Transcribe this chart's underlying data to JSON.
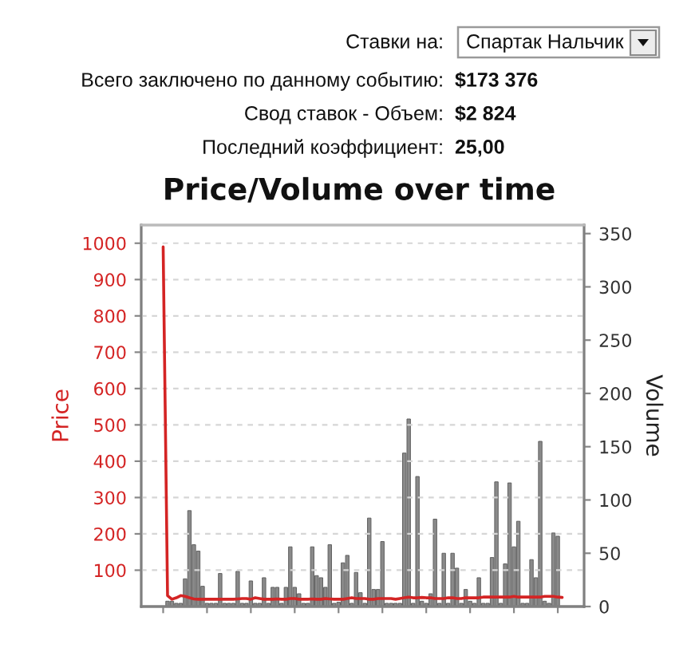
{
  "chart_data": {
    "type": "bar",
    "title": "Price/Volume over time",
    "ylabel": "Price",
    "y2label": "Volume",
    "annotations": [
      "Ставки на:",
      "Спартак Нальчик",
      "Всего заключено по данному событию:",
      "$173 376",
      "Свод ставок - Объем:",
      "$2 824",
      "Последний коэффициент:",
      "25,00"
    ],
    "categories": [
      null,
      null,
      null,
      null,
      null,
      null,
      null,
      null,
      null,
      null,
      null,
      null,
      null,
      null,
      null,
      null,
      null,
      null,
      null,
      null,
      null,
      null,
      null,
      null,
      null,
      null,
      null,
      null,
      null,
      null,
      null,
      null,
      null,
      null,
      null,
      null,
      null,
      null,
      null,
      null,
      null,
      null,
      null,
      null,
      null,
      null,
      null,
      null,
      null,
      null,
      null,
      null,
      null,
      null,
      null,
      null,
      null,
      null,
      null,
      null,
      null,
      null,
      null,
      null,
      null,
      null,
      null,
      null,
      null,
      null,
      null,
      null,
      null,
      null,
      null,
      null,
      null,
      null,
      null,
      null,
      null,
      null,
      null,
      null,
      null,
      null,
      null,
      null,
      null,
      null,
      null,
      null
    ],
    "series": [
      {
        "axis": "y2",
        "color": "#8a8a8a",
        "values": [
          null,
          5,
          5,
          3,
          3,
          26,
          90,
          58,
          52,
          19,
          3,
          3,
          3,
          31,
          3,
          3,
          3,
          33,
          3,
          3,
          24,
          3,
          3,
          27,
          3,
          18,
          18,
          3,
          18,
          56,
          18,
          12,
          3,
          3,
          56,
          29,
          27,
          18,
          58,
          3,
          4,
          41,
          48,
          3,
          32,
          13,
          3,
          83,
          16,
          16,
          61,
          3,
          3,
          3,
          3,
          144,
          176,
          3,
          122,
          5,
          3,
          12,
          82,
          3,
          50,
          3,
          50,
          36,
          3,
          16,
          5,
          3,
          27,
          3,
          3,
          46,
          117,
          3,
          40,
          116,
          56,
          80,
          3,
          3,
          44,
          27,
          155,
          5,
          3,
          69,
          66,
          null
        ]
      },
      {
        "type": "line",
        "axis": "y",
        "color": "#d42424",
        "values": [
          990,
          30,
          20,
          24,
          30,
          28,
          24,
          21,
          20,
          20,
          20,
          20,
          20,
          20,
          20,
          20,
          20,
          21,
          22,
          22,
          20,
          24,
          22,
          20,
          20,
          20,
          21,
          20,
          20,
          22,
          22,
          20,
          20,
          20,
          21,
          20,
          20,
          22,
          21,
          20,
          20,
          20,
          22,
          24,
          22,
          22,
          22,
          20,
          20,
          22,
          22,
          22,
          22,
          20,
          22,
          24,
          26,
          24,
          24,
          25,
          24,
          24,
          22,
          22,
          22,
          24,
          24,
          22,
          22,
          24,
          24,
          24,
          24,
          26,
          26,
          26,
          26,
          26,
          26,
          26,
          28,
          26,
          26,
          26,
          26,
          26,
          26,
          28,
          28,
          28,
          26,
          25
        ]
      }
    ],
    "ylim": [
      0,
      1050
    ],
    "yticks": [
      100,
      200,
      300,
      400,
      500,
      600,
      700,
      800,
      900,
      1000
    ],
    "y2lim": [
      0,
      358
    ],
    "y2ticks": [
      0,
      50,
      100,
      150,
      200,
      250,
      300,
      350
    ],
    "grid": "y",
    "tick_labels": "y"
  }
}
